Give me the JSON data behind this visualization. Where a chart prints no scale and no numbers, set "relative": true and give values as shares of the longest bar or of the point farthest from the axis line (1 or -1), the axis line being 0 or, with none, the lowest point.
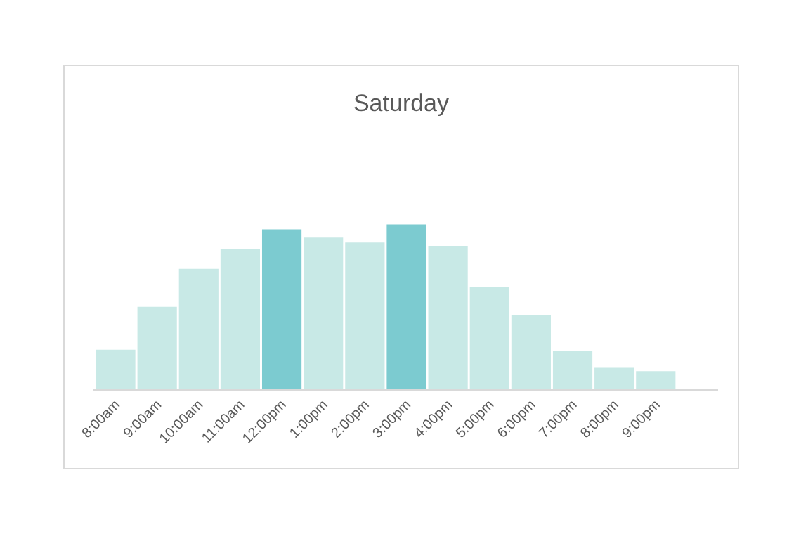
{
  "chart_data": {
    "type": "bar",
    "title": "Saturday",
    "relative": true,
    "categories": [
      "8:00am",
      "9:00am",
      "10:00am",
      "11:00am",
      "12:00pm",
      "1:00pm",
      "2:00pm",
      "3:00pm",
      "4:00pm",
      "5:00pm",
      "6:00pm",
      "7:00pm",
      "8:00pm",
      "9:00pm"
    ],
    "values": [
      0.24,
      0.5,
      0.73,
      0.85,
      0.97,
      0.92,
      0.89,
      1,
      0.87,
      0.62,
      0.45,
      0.23,
      0.13,
      0.11
    ],
    "colors": [
      "#c8e9e6",
      "#c8e9e6",
      "#c8e9e6",
      "#c8e9e6",
      "#7ccbd0",
      "#c8e9e6",
      "#c8e9e6",
      "#7ccbd0",
      "#c8e9e6",
      "#c8e9e6",
      "#c8e9e6",
      "#c8e9e6",
      "#c8e9e6",
      "#c8e9e6"
    ],
    "grid": false,
    "legend": false
  }
}
